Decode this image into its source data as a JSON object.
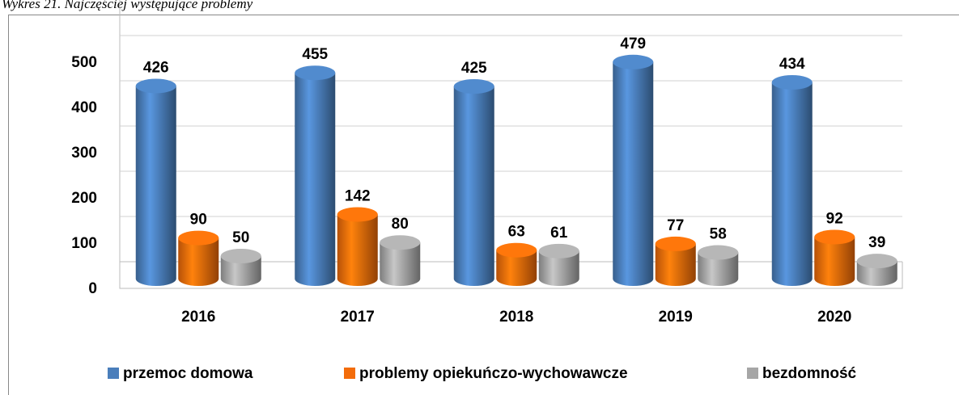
{
  "chart_data": {
    "type": "bar",
    "title": "Wykres 21. Najczęściej występujące problemy",
    "categories": [
      "2016",
      "2017",
      "2018",
      "2019",
      "2020"
    ],
    "series": [
      {
        "name": "przemoc domowa",
        "color": "#4a7ebb",
        "values": [
          426,
          455,
          425,
          479,
          434
        ]
      },
      {
        "name": "problemy opiekuńczo-wychowawcze",
        "color": "#f36c0a",
        "values": [
          90,
          142,
          63,
          77,
          92
        ]
      },
      {
        "name": "bezdomność",
        "color": "#a6a6a6",
        "values": [
          50,
          80,
          61,
          58,
          39
        ]
      }
    ],
    "ylim": [
      0,
      600
    ],
    "yticks": [
      0,
      100,
      200,
      300,
      400,
      500
    ],
    "grid": true
  }
}
